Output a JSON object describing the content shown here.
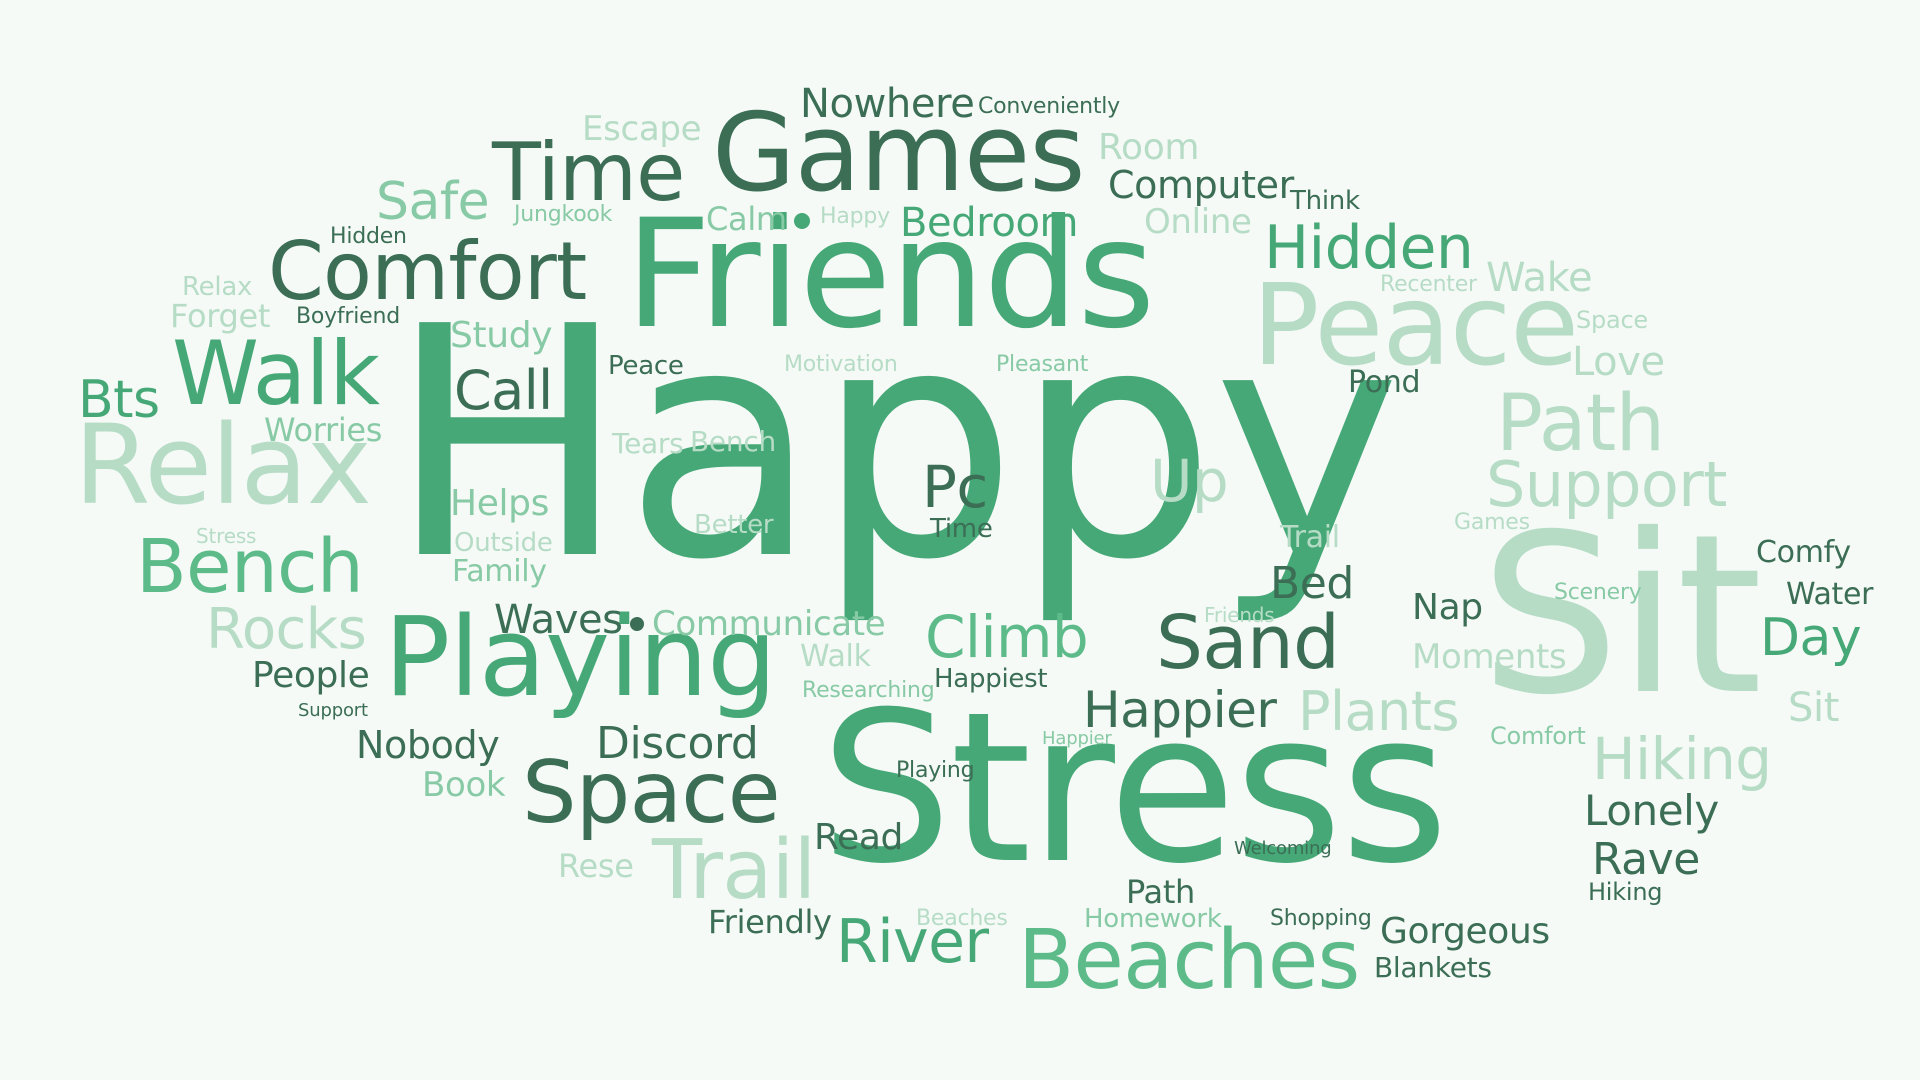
{
  "colors": {
    "background": "#f5faf7",
    "dark": "#3b6e55",
    "medium": "#46a877",
    "mediumlight": "#5dbb8a",
    "light": "#88caa5",
    "pale": "#b6dcc6"
  },
  "words": [
    {
      "text": "Happy",
      "shade": "medium"
    },
    {
      "text": "Stress",
      "shade": "medium"
    },
    {
      "text": "Friends",
      "shade": "medium"
    },
    {
      "text": "Sit",
      "shade": "pale"
    },
    {
      "text": "Games",
      "shade": "dark"
    },
    {
      "text": "Peace",
      "shade": "pale"
    },
    {
      "text": "Playing",
      "shade": "medium"
    },
    {
      "text": "Relax",
      "shade": "pale"
    },
    {
      "text": "Beaches",
      "shade": "medium"
    },
    {
      "text": "Comfort",
      "shade": "dark"
    },
    {
      "text": "Time",
      "shade": "dark"
    },
    {
      "text": "Space",
      "shade": "dark"
    },
    {
      "text": "Walk",
      "shade": "medium"
    },
    {
      "text": "Bench",
      "shade": "medium"
    },
    {
      "text": "Trail",
      "shade": "pale"
    },
    {
      "text": "Sand",
      "shade": "dark"
    },
    {
      "text": "Path",
      "shade": "pale"
    },
    {
      "text": "Hidden",
      "shade": "medium"
    },
    {
      "text": "Support",
      "shade": "pale"
    },
    {
      "text": "Climb",
      "shade": "medium"
    },
    {
      "text": "Rocks",
      "shade": "pale"
    },
    {
      "text": "River",
      "shade": "medium"
    },
    {
      "text": "Pc",
      "shade": "dark"
    },
    {
      "text": "Up",
      "shade": "pale"
    },
    {
      "text": "Call",
      "shade": "dark"
    },
    {
      "text": "Safe",
      "shade": "light"
    },
    {
      "text": "Bts",
      "shade": "medium"
    },
    {
      "text": "Hiking",
      "shade": "pale"
    },
    {
      "text": "Plants",
      "shade": "pale"
    },
    {
      "text": "Day",
      "shade": "medium"
    },
    {
      "text": "Happier",
      "shade": "dark"
    },
    {
      "text": "Discord",
      "shade": "dark"
    },
    {
      "text": "Nowhere",
      "shade": "dark"
    },
    {
      "text": "Bedroom",
      "shade": "medium"
    },
    {
      "text": "Computer",
      "shade": "dark"
    },
    {
      "text": "Lonely",
      "shade": "dark"
    },
    {
      "text": "Rave",
      "shade": "dark"
    },
    {
      "text": "Waves",
      "shade": "dark"
    },
    {
      "text": "Communicate",
      "shade": "light"
    },
    {
      "text": "Nobody",
      "shade": "dark"
    },
    {
      "text": "People",
      "shade": "dark"
    },
    {
      "text": "Gorgeous",
      "shade": "dark"
    },
    {
      "text": "Bed",
      "shade": "dark"
    },
    {
      "text": "Wake",
      "shade": "pale"
    },
    {
      "text": "Love",
      "shade": "pale"
    },
    {
      "text": "Room",
      "shade": "pale"
    },
    {
      "text": "Escape",
      "shade": "pale"
    },
    {
      "text": "Study",
      "shade": "light"
    },
    {
      "text": "Helps",
      "shade": "light"
    },
    {
      "text": "Worries",
      "shade": "light"
    },
    {
      "text": "Forget",
      "shade": "pale"
    },
    {
      "text": "Read",
      "shade": "dark"
    },
    {
      "text": "Book",
      "shade": "light"
    },
    {
      "text": "Calm",
      "shade": "light"
    },
    {
      "text": "Online",
      "shade": "pale"
    },
    {
      "text": "Family",
      "shade": "light"
    },
    {
      "text": "Friendly",
      "shade": "dark"
    },
    {
      "text": "Moments",
      "shade": "pale"
    },
    {
      "text": "Homework",
      "shade": "light"
    },
    {
      "text": "Tears",
      "shade": "pale"
    },
    {
      "text": "Bench",
      "shade": "pale"
    },
    {
      "text": "Nap",
      "shade": "dark"
    },
    {
      "text": "Water",
      "shade": "dark"
    },
    {
      "text": "Comfy",
      "shade": "dark"
    },
    {
      "text": "Sit",
      "shade": "pale"
    },
    {
      "text": "Path",
      "shade": "dark"
    },
    {
      "text": "Blankets",
      "shade": "dark"
    },
    {
      "text": "Pond",
      "shade": "dark"
    },
    {
      "text": "Peace",
      "shade": "dark"
    },
    {
      "text": "Walk",
      "shade": "pale"
    },
    {
      "text": "Rese",
      "shade": "pale"
    },
    {
      "text": "Relax",
      "shade": "pale"
    },
    {
      "text": "Outside",
      "shade": "pale"
    },
    {
      "text": "Trail",
      "shade": "pale"
    },
    {
      "text": "Better",
      "shade": "pale"
    },
    {
      "text": "Happiest",
      "shade": "dark"
    },
    {
      "text": "Time",
      "shade": "dark"
    },
    {
      "text": "Think",
      "shade": "dark"
    },
    {
      "text": "Hidden",
      "shade": "dark"
    },
    {
      "text": "Boyfriend",
      "shade": "dark"
    },
    {
      "text": "Conveniently",
      "shade": "dark"
    },
    {
      "text": "Jungkook",
      "shade": "light"
    },
    {
      "text": "Happy",
      "shade": "pale"
    },
    {
      "text": "Motivation",
      "shade": "pale"
    },
    {
      "text": "Pleasant",
      "shade": "light"
    },
    {
      "text": "Recenter",
      "shade": "pale"
    },
    {
      "text": "Space",
      "shade": "pale"
    },
    {
      "text": "Stress",
      "shade": "pale"
    },
    {
      "text": "Games",
      "shade": "pale"
    },
    {
      "text": "Scenery",
      "shade": "light"
    },
    {
      "text": "Friends",
      "shade": "pale"
    },
    {
      "text": "Researching",
      "shade": "light"
    },
    {
      "text": "Support",
      "shade": "dark"
    },
    {
      "text": "Happier",
      "shade": "light"
    },
    {
      "text": "Playing",
      "shade": "dark"
    },
    {
      "text": "Comfort",
      "shade": "light"
    },
    {
      "text": "Welcoming",
      "shade": "dark"
    },
    {
      "text": "Beaches",
      "shade": "pale"
    },
    {
      "text": "Shopping",
      "shade": "dark"
    },
    {
      "text": "Hiking",
      "shade": "dark"
    }
  ]
}
